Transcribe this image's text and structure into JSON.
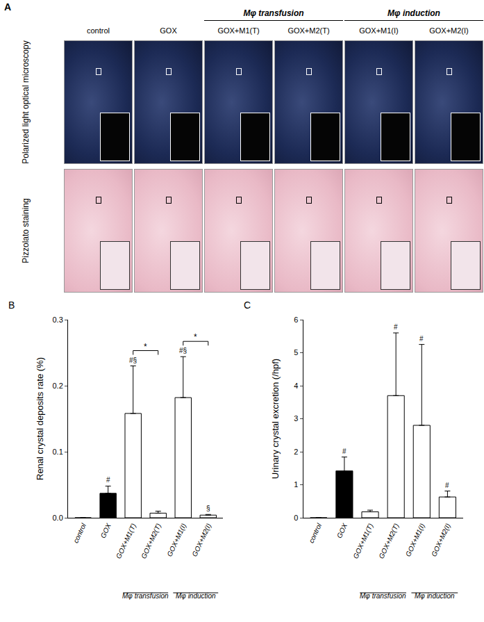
{
  "panel_A": {
    "label": "A",
    "columns": [
      "control",
      "GOX",
      "GOX+M1(T)",
      "GOX+M2(T)",
      "GOX+M1(I)",
      "GOX+M2(I)"
    ],
    "column_groups": [
      {
        "label": "Mφ transfusion",
        "columns": [
          "GOX+M1(T)",
          "GOX+M2(T)"
        ]
      },
      {
        "label": "Mφ induction",
        "columns": [
          "GOX+M1(I)",
          "GOX+M2(I)"
        ]
      }
    ],
    "rows": [
      "Polarized light optical microscopy",
      "Pizzolato staining"
    ]
  },
  "chart_data": [
    {
      "type": "bar",
      "title": "B",
      "y_label": "Renal crystal deposits rate (%)",
      "categories": [
        "control",
        "GOX",
        "GOX+M1(T)",
        "GOX+M2(T)",
        "GOX+M1(I)",
        "GOX+M2(I)"
      ],
      "values": [
        0,
        0.037,
        0.158,
        0.007,
        0.182,
        0.004
      ],
      "errors": [
        null,
        0.011,
        0.072,
        0.003,
        0.062,
        0.001
      ],
      "colors": [
        "#ffffff",
        "#000000",
        "#ffffff",
        "#ffffff",
        "#ffffff",
        "#ffffff"
      ],
      "ylim": [
        0,
        0.3
      ],
      "yticks": [
        {
          "value": 0,
          "label": "0.0"
        },
        {
          "value": 0.1,
          "label": "0.1"
        },
        {
          "value": 0.2,
          "label": "0.2"
        },
        {
          "value": 0.3,
          "label": "0.3"
        }
      ],
      "grid": false,
      "annotations": [
        {
          "category": "GOX",
          "text": "#"
        },
        {
          "category": "GOX+M1(T)",
          "text": "#§"
        },
        {
          "category": "GOX+M1(I)",
          "text": "#§"
        },
        {
          "category": "GOX+M2(I)",
          "text": "§"
        }
      ],
      "significance": [
        {
          "from": "GOX+M1(T)",
          "to": "GOX+M2(T)",
          "text": "*"
        },
        {
          "from": "GOX+M1(I)",
          "to": "GOX+M2(I)",
          "text": "*"
        }
      ],
      "groups": [
        {
          "label": "Mφ transfusion",
          "categories": [
            "GOX+M1(T)",
            "GOX+M2(T)"
          ]
        },
        {
          "label": "Mφ induction",
          "categories": [
            "GOX+M1(I)",
            "GOX+M2(I)"
          ]
        }
      ]
    },
    {
      "type": "bar",
      "title": "C",
      "y_label": "Urinary crystal excretion (/hpf)",
      "categories": [
        "control",
        "GOX",
        "GOX+M1(T)",
        "GOX+M2(T)",
        "GOX+M1(I)",
        "GOX+M2(I)"
      ],
      "values": [
        0,
        1.42,
        0.18,
        3.7,
        2.8,
        0.63
      ],
      "errors": [
        null,
        0.42,
        0.05,
        1.9,
        2.45,
        0.18
      ],
      "colors": [
        "#ffffff",
        "#000000",
        "#ffffff",
        "#ffffff",
        "#ffffff",
        "#ffffff"
      ],
      "ylim": [
        0,
        6
      ],
      "yticks": [
        0,
        1,
        2,
        3,
        4,
        5,
        6
      ],
      "grid": false,
      "annotations": [
        {
          "category": "GOX",
          "text": "#"
        },
        {
          "category": "GOX+M2(T)",
          "text": "#"
        },
        {
          "category": "GOX+M1(I)",
          "text": "#"
        },
        {
          "category": "GOX+M2(I)",
          "text": "#"
        }
      ],
      "significance": [],
      "groups": [
        {
          "label": "Mφ transfusion",
          "categories": [
            "GOX+M1(T)",
            "GOX+M2(T)"
          ]
        },
        {
          "label": "Mφ induction",
          "categories": [
            "GOX+M1(I)",
            "GOX+M2(I)"
          ]
        }
      ]
    }
  ]
}
